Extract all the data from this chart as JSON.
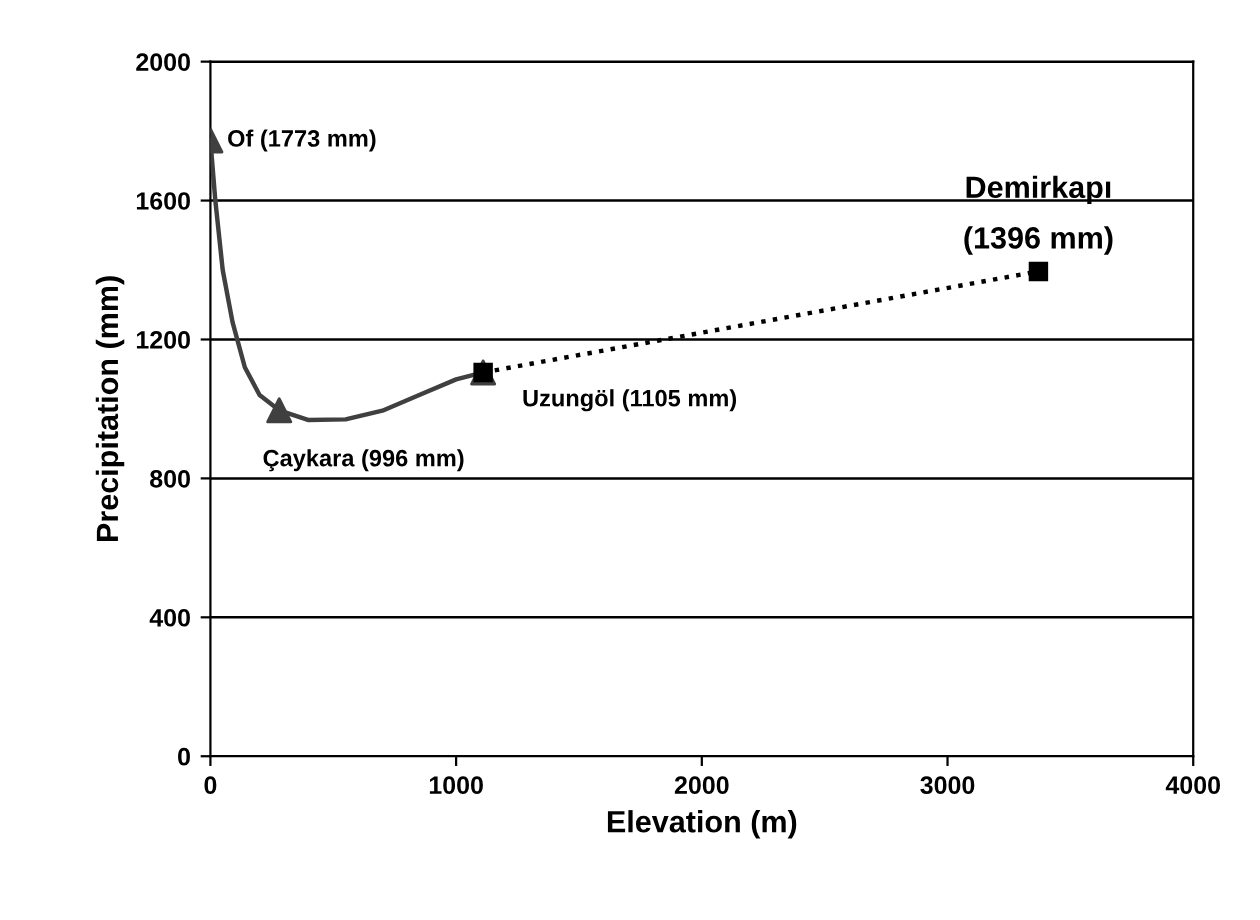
{
  "chart_data": {
    "type": "line",
    "xlabel": "Elevation (m)",
    "ylabel": "Precipitation (mm)",
    "xlim": [
      0,
      4000
    ],
    "xticks": [
      0,
      1000,
      2000,
      3000,
      4000
    ],
    "ylim": [
      0,
      2000
    ],
    "yticks": [
      0,
      400,
      800,
      1200,
      1600,
      2000
    ],
    "grid": "y",
    "series": [
      {
        "x": [
          0,
          20,
          50,
          90,
          140,
          200,
          280,
          400,
          550,
          700,
          850,
          1000,
          1110
        ],
        "values": [
          1773,
          1600,
          1400,
          1250,
          1120,
          1040,
          996,
          968,
          970,
          995,
          1040,
          1085,
          1105
        ],
        "color": "#404040",
        "marker": "none",
        "line_style": "solid"
      },
      {
        "type": "scatter",
        "x": [
          0,
          280,
          1110
        ],
        "values": [
          1773,
          996,
          1105
        ],
        "color": "#404040",
        "marker": "triangle"
      },
      {
        "x": [
          1110,
          3370
        ],
        "values": [
          1105,
          1396
        ],
        "color": "#000000",
        "marker": "square",
        "line_style": "dotted"
      }
    ],
    "annotations": [
      {
        "text": "Of (1773 mm)",
        "x": 0,
        "y": 1773
      },
      {
        "text": "Çaykara (996 mm)",
        "x": 280,
        "y": 996
      },
      {
        "text": "Uzungöl (1105 mm)",
        "x": 1110,
        "y": 1105
      },
      {
        "text": "Demirkapı\n(1396 mm)",
        "x": 3370,
        "y": 1396
      }
    ]
  }
}
